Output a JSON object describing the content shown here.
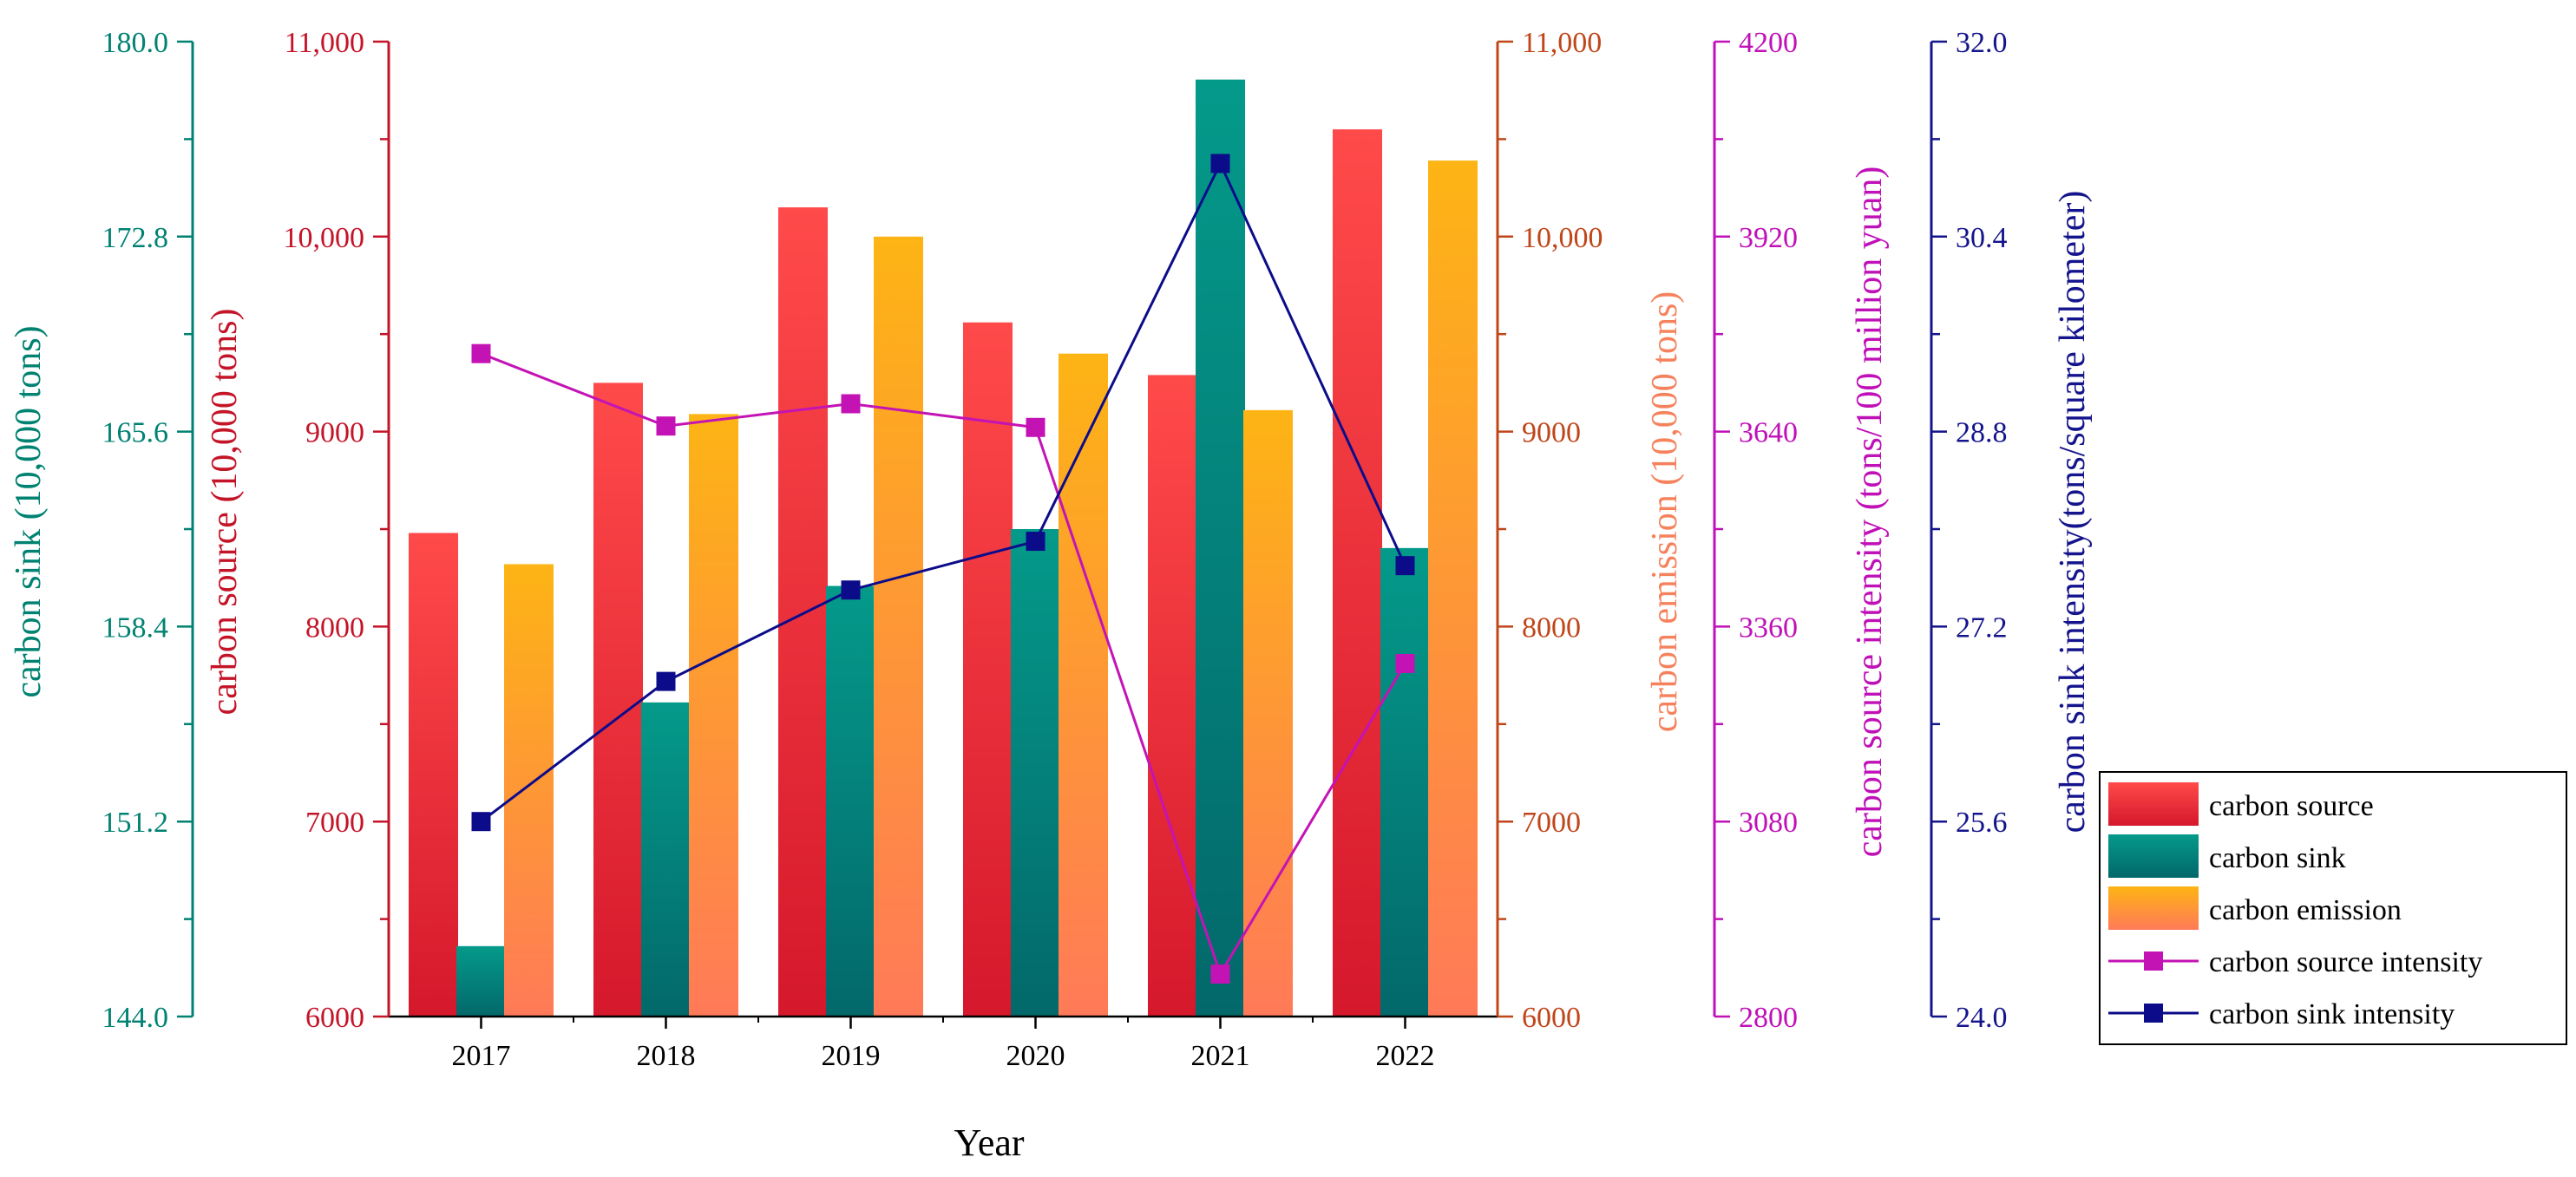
{
  "chart_data": {
    "type": "bar",
    "xlabel": "Year",
    "categories": [
      "2017",
      "2018",
      "2019",
      "2020",
      "2021",
      "2022"
    ],
    "bar_series": [
      {
        "name": "carbon source",
        "axis": "source",
        "values": [
          8480,
          9250,
          10150,
          9560,
          9290,
          10550
        ],
        "color_top": "#ff4a4a",
        "color_bottom": "#d5182c"
      },
      {
        "name": "carbon sink",
        "axis": "sink",
        "values": [
          146.6,
          155.6,
          159.9,
          162.0,
          178.6,
          161.3
        ],
        "color_top": "#049a8a",
        "color_bottom": "#03686a"
      },
      {
        "name": "carbon emission",
        "axis": "emission",
        "values": [
          8320,
          9090,
          10000,
          9400,
          9110,
          10390
        ],
        "color_top": "#fdb414",
        "color_bottom": "#ff7a58"
      }
    ],
    "line_series": [
      {
        "name": "carbon source intensity",
        "axis": "source_intensity",
        "values": [
          3752,
          3648,
          3680,
          3646,
          2861,
          3307
        ],
        "color": "#c413b5"
      },
      {
        "name": "carbon sink intensity",
        "axis": "sink_intensity",
        "values": [
          25.6,
          26.75,
          27.5,
          27.9,
          31.0,
          27.7
        ],
        "color": "#0c0c8a"
      }
    ],
    "axes": [
      {
        "id": "sink",
        "label": "carbon sink (10,000 tons)",
        "ylim": [
          144.0,
          180.0
        ],
        "ticks": [
          "144.0",
          "151.2",
          "158.4",
          "165.6",
          "172.8",
          "180.0"
        ],
        "color": "#008272"
      },
      {
        "id": "source",
        "label": "carbon source (10,000 tons)",
        "ylim": [
          6000,
          11000
        ],
        "ticks": [
          "6000",
          "7000",
          "8000",
          "9000",
          "10,000",
          "11,000"
        ],
        "color": "#c41428"
      },
      {
        "id": "emission",
        "label": "carbon emission (10,000 tons)",
        "ylim": [
          6000,
          11000
        ],
        "ticks": [
          "6000",
          "7000",
          "8000",
          "9000",
          "10,000",
          "11,000"
        ],
        "color": "#c0461a",
        "title_color": "#f5825c"
      },
      {
        "id": "source_intensity",
        "label": "carbon source intensity (tons/100 million yuan)",
        "ylim": [
          2800,
          4200
        ],
        "ticks": [
          "2800",
          "3080",
          "3360",
          "3640",
          "3920",
          "4200"
        ],
        "color": "#c010b8"
      },
      {
        "id": "sink_intensity",
        "label": "carbon sink intensity(tons/square kilometer)",
        "ylim": [
          24.0,
          32.0
        ],
        "ticks": [
          "24.0",
          "25.6",
          "27.2",
          "28.8",
          "30.4",
          "32.0"
        ],
        "color": "#14148c"
      }
    ],
    "legend": {
      "position": "bottom-right",
      "items": [
        "carbon source",
        "carbon sink",
        "carbon emission",
        "carbon source intensity",
        "carbon sink intensity"
      ]
    }
  }
}
